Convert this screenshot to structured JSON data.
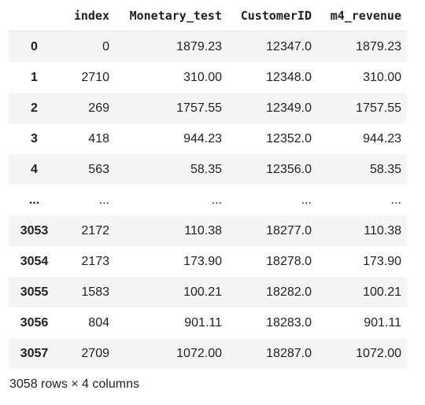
{
  "dataframe": {
    "columns": [
      "",
      "index",
      "Monetary_test",
      "CustomerID",
      "m4_revenue"
    ],
    "rows": [
      [
        "0",
        "0",
        "1879.23",
        "12347.0",
        "1879.23"
      ],
      [
        "1",
        "2710",
        "310.00",
        "12348.0",
        "310.00"
      ],
      [
        "2",
        "269",
        "1757.55",
        "12349.0",
        "1757.55"
      ],
      [
        "3",
        "418",
        "944.23",
        "12352.0",
        "944.23"
      ],
      [
        "4",
        "563",
        "58.35",
        "12356.0",
        "58.35"
      ],
      [
        "...",
        "...",
        "...",
        "...",
        "..."
      ],
      [
        "3053",
        "2172",
        "110.38",
        "18277.0",
        "110.38"
      ],
      [
        "3054",
        "2173",
        "173.90",
        "18278.0",
        "173.90"
      ],
      [
        "3055",
        "1583",
        "100.21",
        "18282.0",
        "100.21"
      ],
      [
        "3056",
        "804",
        "901.11",
        "18283.0",
        "901.11"
      ],
      [
        "3057",
        "2709",
        "1072.00",
        "18287.0",
        "1072.00"
      ]
    ],
    "shape_caption": "3058 rows × 4 columns"
  }
}
